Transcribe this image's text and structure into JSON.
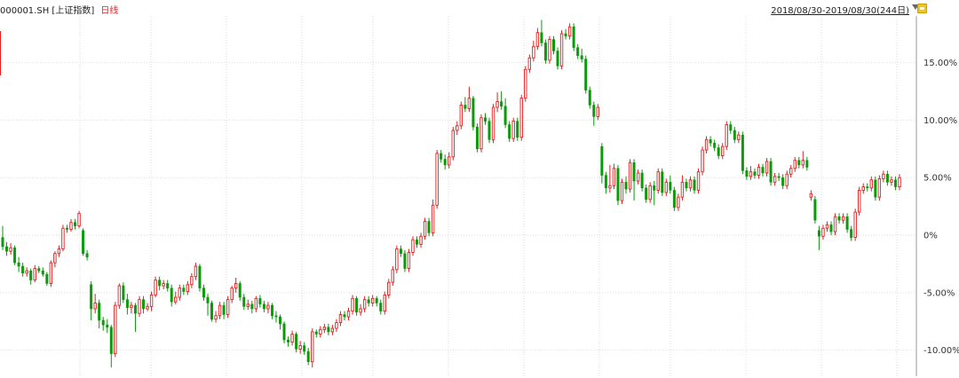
{
  "header": {
    "symbol": "000001.SH",
    "name": "[上证指数]",
    "period": "日线",
    "date_range": "2018/08/30-2019/08/30(244日)"
  },
  "colors": {
    "up": "#e02020",
    "down": "#0a9a0a",
    "grid": "#d0d0d0",
    "axis": "#999999"
  },
  "chart_data": {
    "type": "candlestick",
    "y_axis": {
      "unit": "%",
      "ticks": [
        "15.00%",
        "10.00%",
        "5.00%",
        "0%",
        "-5.00%",
        "-10.00%"
      ],
      "tick_values": [
        15,
        10,
        5,
        0,
        -5,
        -10
      ],
      "ylim": [
        -12,
        20
      ]
    },
    "grid": true,
    "candles": [
      [
        -0.2,
        -1.0,
        0.8,
        -1.3
      ],
      [
        -1.0,
        -1.4,
        -0.6,
        -1.8
      ],
      [
        -1.4,
        -1.1,
        -0.7,
        -1.7
      ],
      [
        -1.1,
        -2.4,
        -0.9,
        -2.6
      ],
      [
        -2.4,
        -2.7,
        -1.9,
        -3.2
      ],
      [
        -2.7,
        -3.3,
        -2.4,
        -3.6
      ],
      [
        -3.3,
        -3.1,
        -2.8,
        -3.6
      ],
      [
        -3.1,
        -3.9,
        -2.9,
        -4.3
      ],
      [
        -3.9,
        -2.9,
        -2.6,
        -4.1
      ],
      [
        -2.9,
        -3.1,
        -2.7,
        -3.3
      ],
      [
        -3.1,
        -3.4,
        -2.8,
        -3.6
      ],
      [
        -3.4,
        -4.2,
        -3.2,
        -4.4
      ],
      [
        -4.2,
        -2.4,
        -2.2,
        -4.5
      ],
      [
        -2.4,
        -1.6,
        -1.4,
        -2.8
      ],
      [
        -1.6,
        -1.2,
        -0.9,
        -1.9
      ],
      [
        -1.2,
        0.6,
        0.9,
        -1.4
      ],
      [
        0.6,
        0.5,
        0.9,
        0.2
      ],
      [
        0.5,
        1.1,
        1.4,
        0.3
      ],
      [
        1.1,
        0.8,
        1.4,
        0.5
      ],
      [
        0.8,
        1.9,
        2.1,
        0.6
      ],
      [
        0.4,
        -1.6,
        0.6,
        -1.8
      ],
      [
        -1.6,
        -1.9,
        -1.3,
        -2.2
      ],
      [
        -4.3,
        -6.4,
        -4.0,
        -7.4
      ],
      [
        -6.4,
        -5.9,
        -5.1,
        -6.8
      ],
      [
        -5.9,
        -7.4,
        -5.6,
        -8.1
      ],
      [
        -7.4,
        -7.8,
        -7.1,
        -8.3
      ],
      [
        -7.8,
        -8.0,
        -7.3,
        -8.5
      ],
      [
        -8.0,
        -10.3,
        -7.8,
        -11.5
      ],
      [
        -10.3,
        -6.1,
        -5.8,
        -10.6
      ],
      [
        -6.1,
        -4.4,
        -4.2,
        -6.4
      ],
      [
        -4.4,
        -5.6,
        -4.1,
        -5.9
      ],
      [
        -5.6,
        -6.3,
        -5.1,
        -6.9
      ],
      [
        -6.3,
        -6.1,
        -5.8,
        -6.8
      ],
      [
        -6.1,
        -6.8,
        -5.9,
        -8.4
      ],
      [
        -6.8,
        -5.6,
        -5.3,
        -7.1
      ],
      [
        -5.6,
        -6.4,
        -5.3,
        -6.8
      ],
      [
        -6.4,
        -6.2,
        -5.9,
        -6.6
      ],
      [
        -6.2,
        -5.2,
        -4.9,
        -6.6
      ],
      [
        -5.2,
        -3.9,
        -3.6,
        -5.4
      ],
      [
        -3.9,
        -4.4,
        -3.6,
        -4.8
      ],
      [
        -4.4,
        -4.2,
        -3.9,
        -4.7
      ],
      [
        -4.2,
        -4.6,
        -3.9,
        -4.9
      ],
      [
        -4.6,
        -5.8,
        -4.3,
        -6.2
      ],
      [
        -5.8,
        -5.4,
        -4.9,
        -6.0
      ],
      [
        -5.4,
        -4.6,
        -4.3,
        -5.7
      ],
      [
        -4.6,
        -4.9,
        -4.3,
        -5.2
      ],
      [
        -4.9,
        -4.3,
        -4.0,
        -5.2
      ],
      [
        -4.3,
        -3.6,
        -3.3,
        -4.6
      ],
      [
        -3.6,
        -2.7,
        -2.4,
        -3.9
      ],
      [
        -2.7,
        -4.6,
        -2.5,
        -4.9
      ],
      [
        -4.6,
        -5.4,
        -4.3,
        -5.7
      ],
      [
        -5.4,
        -5.9,
        -5.1,
        -7.0
      ],
      [
        -5.9,
        -7.3,
        -5.7,
        -7.5
      ],
      [
        -7.3,
        -7.0,
        -6.6,
        -7.6
      ],
      [
        -7.0,
        -6.1,
        -5.8,
        -7.3
      ],
      [
        -6.1,
        -6.9,
        -5.8,
        -7.3
      ],
      [
        -6.9,
        -5.6,
        -5.3,
        -7.2
      ],
      [
        -5.6,
        -4.6,
        -4.4,
        -5.9
      ],
      [
        -4.6,
        -4.2,
        -3.7,
        -5.0
      ],
      [
        -4.2,
        -5.4,
        -4.0,
        -5.7
      ],
      [
        -5.4,
        -6.2,
        -5.1,
        -6.5
      ],
      [
        -6.2,
        -6.0,
        -5.6,
        -6.5
      ],
      [
        -6.0,
        -6.4,
        -5.7,
        -6.8
      ],
      [
        -6.4,
        -5.5,
        -5.3,
        -6.7
      ],
      [
        -5.5,
        -6.0,
        -5.2,
        -6.3
      ],
      [
        -6.0,
        -6.4,
        -5.7,
        -6.7
      ],
      [
        -6.4,
        -6.1,
        -5.8,
        -6.8
      ],
      [
        -6.1,
        -7.0,
        -5.9,
        -7.3
      ],
      [
        -7.0,
        -7.1,
        -6.6,
        -7.6
      ],
      [
        -7.1,
        -7.7,
        -6.9,
        -8.2
      ],
      [
        -7.7,
        -9.1,
        -7.5,
        -9.4
      ],
      [
        -9.1,
        -9.3,
        -8.8,
        -9.7
      ],
      [
        -9.3,
        -8.6,
        -8.3,
        -9.6
      ],
      [
        -8.6,
        -9.9,
        -8.4,
        -10.2
      ],
      [
        -9.9,
        -9.6,
        -9.2,
        -10.3
      ],
      [
        -9.6,
        -10.1,
        -9.3,
        -10.4
      ],
      [
        -10.1,
        -11.0,
        -9.8,
        -11.3
      ],
      [
        -11.0,
        -8.4,
        -8.1,
        -11.5
      ],
      [
        -8.4,
        -8.6,
        -8.2,
        -8.9
      ],
      [
        -8.6,
        -8.2,
        -7.9,
        -8.9
      ],
      [
        -8.2,
        -8.0,
        -7.7,
        -8.5
      ],
      [
        -8.0,
        -8.4,
        -7.7,
        -8.7
      ],
      [
        -8.4,
        -8.1,
        -7.8,
        -8.7
      ],
      [
        -8.1,
        -7.6,
        -7.3,
        -8.4
      ],
      [
        -7.6,
        -6.9,
        -6.6,
        -7.9
      ],
      [
        -6.9,
        -7.1,
        -6.6,
        -7.4
      ],
      [
        -7.1,
        -6.6,
        -6.3,
        -7.4
      ],
      [
        -6.6,
        -5.5,
        -5.2,
        -6.9
      ],
      [
        -5.5,
        -6.7,
        -5.3,
        -7.0
      ],
      [
        -6.7,
        -6.4,
        -6.0,
        -7.0
      ],
      [
        -6.4,
        -5.6,
        -5.3,
        -6.7
      ],
      [
        -5.6,
        -5.9,
        -5.3,
        -6.2
      ],
      [
        -5.9,
        -5.5,
        -5.2,
        -6.2
      ],
      [
        -5.5,
        -5.9,
        -5.3,
        -6.2
      ],
      [
        -5.9,
        -6.6,
        -5.6,
        -6.9
      ],
      [
        -6.6,
        -5.2,
        -4.9,
        -6.9
      ],
      [
        -5.2,
        -4.1,
        -3.8,
        -5.5
      ],
      [
        -4.1,
        -3.0,
        -2.7,
        -4.4
      ],
      [
        -3.0,
        -1.2,
        -0.9,
        -3.3
      ],
      [
        -1.2,
        -1.6,
        -0.9,
        -1.9
      ],
      [
        -1.6,
        -2.9,
        -1.3,
        -3.2
      ],
      [
        -2.9,
        -1.5,
        -1.2,
        -3.2
      ],
      [
        -1.5,
        -0.4,
        -0.1,
        -1.8
      ],
      [
        -0.4,
        -0.8,
        -0.1,
        -1.1
      ],
      [
        -0.8,
        -0.1,
        0.2,
        -1.1
      ],
      [
        -0.1,
        1.2,
        1.5,
        -0.4
      ],
      [
        1.2,
        0.2,
        1.5,
        -0.1
      ],
      [
        0.2,
        2.6,
        3.1,
        -0.1
      ],
      [
        2.6,
        7.1,
        7.4,
        2.3
      ],
      [
        7.1,
        6.6,
        7.4,
        6.3
      ],
      [
        6.6,
        6.1,
        7.0,
        5.7
      ],
      [
        6.1,
        6.8,
        7.2,
        5.8
      ],
      [
        6.8,
        9.1,
        9.4,
        6.5
      ],
      [
        9.1,
        9.5,
        9.9,
        8.7
      ],
      [
        9.5,
        11.3,
        11.6,
        9.2
      ],
      [
        11.3,
        11.0,
        12.0,
        10.7
      ],
      [
        11.0,
        11.9,
        12.9,
        10.7
      ],
      [
        11.9,
        9.4,
        12.1,
        9.1
      ],
      [
        9.4,
        7.5,
        9.7,
        7.2
      ],
      [
        7.5,
        10.2,
        10.5,
        7.2
      ],
      [
        10.2,
        9.9,
        10.6,
        9.6
      ],
      [
        9.9,
        8.3,
        10.2,
        8.0
      ],
      [
        8.3,
        11.1,
        11.4,
        8.0
      ],
      [
        11.1,
        11.6,
        12.4,
        10.7
      ],
      [
        11.6,
        11.2,
        12.5,
        10.9
      ],
      [
        11.2,
        9.6,
        11.9,
        9.3
      ],
      [
        9.6,
        8.4,
        9.9,
        8.1
      ],
      [
        8.4,
        9.9,
        10.2,
        8.1
      ],
      [
        9.9,
        8.5,
        10.2,
        8.2
      ],
      [
        8.5,
        11.9,
        12.2,
        8.2
      ],
      [
        11.9,
        14.4,
        14.7,
        11.6
      ],
      [
        14.4,
        15.4,
        15.7,
        14.1
      ],
      [
        15.4,
        16.4,
        16.9,
        15.1
      ],
      [
        16.4,
        17.6,
        18.0,
        16.1
      ],
      [
        17.6,
        16.7,
        18.7,
        16.4
      ],
      [
        16.7,
        15.2,
        17.0,
        14.9
      ],
      [
        15.2,
        17.0,
        17.3,
        14.9
      ],
      [
        17.0,
        16.0,
        17.3,
        15.7
      ],
      [
        16.0,
        14.7,
        16.3,
        14.4
      ],
      [
        14.7,
        17.5,
        17.8,
        14.4
      ],
      [
        17.5,
        17.3,
        17.9,
        17.0
      ],
      [
        17.3,
        18.1,
        18.4,
        17.0
      ],
      [
        18.1,
        16.3,
        18.4,
        16.0
      ],
      [
        16.3,
        15.6,
        16.6,
        15.3
      ],
      [
        15.6,
        15.3,
        16.2,
        15.0
      ],
      [
        15.3,
        12.6,
        15.6,
        12.3
      ],
      [
        12.6,
        11.3,
        12.9,
        11.0
      ],
      [
        11.3,
        10.3,
        11.6,
        9.5
      ],
      [
        10.3,
        11.1,
        11.4,
        10.0
      ],
      [
        7.7,
        5.2,
        8.0,
        4.5
      ],
      [
        5.2,
        4.1,
        5.5,
        3.6
      ],
      [
        4.1,
        4.3,
        6.1,
        3.7
      ],
      [
        4.3,
        5.8,
        6.2,
        4.0
      ],
      [
        5.8,
        3.0,
        6.1,
        2.6
      ],
      [
        3.0,
        4.6,
        4.9,
        2.7
      ],
      [
        4.6,
        4.0,
        5.1,
        3.6
      ],
      [
        4.0,
        6.3,
        6.6,
        3.7
      ],
      [
        6.3,
        4.7,
        6.6,
        3.0
      ],
      [
        4.7,
        5.4,
        5.7,
        4.4
      ],
      [
        5.4,
        4.1,
        5.7,
        3.8
      ],
      [
        4.1,
        3.1,
        4.4,
        2.8
      ],
      [
        3.1,
        4.3,
        4.6,
        2.8
      ],
      [
        4.3,
        3.9,
        4.7,
        2.6
      ],
      [
        3.9,
        5.5,
        5.8,
        3.6
      ],
      [
        5.5,
        3.7,
        5.8,
        3.4
      ],
      [
        3.7,
        4.6,
        4.9,
        3.4
      ],
      [
        4.6,
        3.9,
        5.2,
        3.6
      ],
      [
        3.9,
        2.4,
        4.2,
        2.1
      ],
      [
        2.4,
        3.3,
        3.6,
        2.1
      ],
      [
        3.3,
        4.6,
        5.2,
        3.0
      ],
      [
        4.6,
        4.1,
        4.9,
        3.8
      ],
      [
        4.1,
        4.8,
        5.1,
        3.8
      ],
      [
        4.8,
        3.9,
        5.1,
        3.6
      ],
      [
        3.9,
        5.5,
        5.8,
        3.6
      ],
      [
        5.5,
        7.4,
        7.7,
        5.2
      ],
      [
        7.4,
        8.3,
        8.6,
        7.1
      ],
      [
        8.3,
        8.0,
        8.6,
        7.7
      ],
      [
        8.0,
        7.6,
        8.3,
        7.3
      ],
      [
        7.6,
        6.9,
        7.9,
        6.6
      ],
      [
        6.9,
        7.7,
        8.0,
        6.6
      ],
      [
        7.7,
        9.6,
        9.9,
        7.4
      ],
      [
        9.6,
        9.1,
        9.9,
        8.8
      ],
      [
        9.1,
        8.3,
        9.4,
        8.0
      ],
      [
        8.3,
        8.7,
        9.0,
        8.0
      ],
      [
        8.7,
        5.6,
        9.0,
        5.3
      ],
      [
        5.6,
        5.1,
        5.9,
        4.8
      ],
      [
        5.1,
        5.5,
        6.0,
        4.8
      ],
      [
        5.5,
        5.2,
        5.8,
        4.9
      ],
      [
        5.2,
        5.9,
        6.2,
        4.9
      ],
      [
        5.9,
        5.4,
        6.2,
        5.1
      ],
      [
        5.4,
        6.4,
        6.7,
        5.1
      ],
      [
        6.4,
        4.6,
        6.7,
        4.3
      ],
      [
        4.6,
        5.1,
        5.4,
        4.3
      ],
      [
        5.1,
        5.0,
        5.4,
        4.7
      ],
      [
        5.0,
        4.3,
        5.3,
        4.0
      ],
      [
        4.3,
        5.3,
        5.6,
        4.0
      ],
      [
        5.3,
        5.8,
        6.1,
        5.0
      ],
      [
        5.8,
        6.5,
        6.8,
        5.5
      ],
      [
        6.5,
        6.1,
        6.8,
        5.8
      ],
      [
        6.1,
        6.5,
        7.3,
        5.8
      ],
      [
        6.5,
        5.9,
        6.8,
        5.6
      ],
      [
        3.3,
        3.6,
        3.9,
        3.0
      ],
      [
        3.1,
        1.3,
        3.4,
        1.0
      ],
      [
        0.4,
        -0.1,
        0.8,
        -1.3
      ],
      [
        -0.1,
        0.6,
        0.9,
        -0.4
      ],
      [
        0.6,
        0.9,
        1.2,
        0.3
      ],
      [
        0.9,
        0.3,
        1.2,
        0.0
      ],
      [
        0.3,
        1.6,
        1.9,
        0.0
      ],
      [
        1.6,
        1.3,
        1.9,
        1.0
      ],
      [
        1.3,
        1.6,
        1.9,
        1.0
      ],
      [
        1.6,
        0.5,
        1.9,
        0.2
      ],
      [
        0.5,
        -0.2,
        0.8,
        -0.5
      ],
      [
        -0.2,
        2.0,
        2.3,
        -0.5
      ],
      [
        2.0,
        3.9,
        4.2,
        1.7
      ],
      [
        3.9,
        4.2,
        4.5,
        3.6
      ],
      [
        4.2,
        4.1,
        4.5,
        3.8
      ],
      [
        4.1,
        4.8,
        5.1,
        3.8
      ],
      [
        4.8,
        3.3,
        5.1,
        3.0
      ],
      [
        3.3,
        4.9,
        5.2,
        3.0
      ],
      [
        4.9,
        5.3,
        5.6,
        4.6
      ],
      [
        5.3,
        4.6,
        5.6,
        4.3
      ],
      [
        4.6,
        4.8,
        5.1,
        4.3
      ],
      [
        4.8,
        4.2,
        5.1,
        3.9
      ],
      [
        4.2,
        5.0,
        5.3,
        3.9
      ]
    ]
  }
}
